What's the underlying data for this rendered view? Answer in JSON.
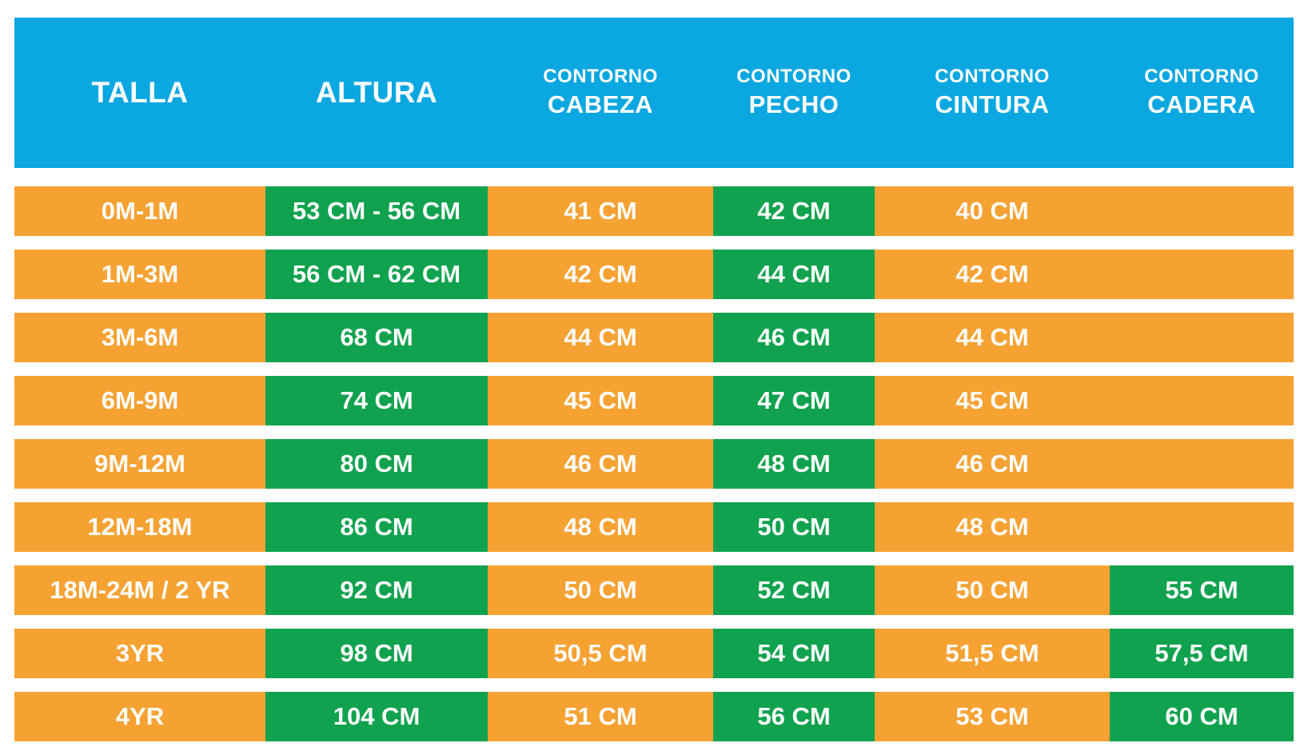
{
  "colors": {
    "header_blue": "#0AA7E1",
    "cell_orange": "#F5A233",
    "cell_green": "#10A24E",
    "text_white": "#FFFFFF",
    "page_background": "#FFFFFF"
  },
  "header": {
    "columns": [
      {
        "line1": "TALLA",
        "line2": ""
      },
      {
        "line1": "ALTURA",
        "line2": ""
      },
      {
        "line1": "CONTORNO",
        "line2": "CABEZA"
      },
      {
        "line1": "CONTORNO",
        "line2": "PECHO"
      },
      {
        "line1": "CONTORNO",
        "line2": "CINTURA"
      },
      {
        "line1": "CONTORNO",
        "line2": "CADERA"
      }
    ]
  },
  "chart_data": {
    "type": "table",
    "title": "",
    "columns": [
      "TALLA",
      "ALTURA",
      "CONTORNO CABEZA",
      "CONTORNO PECHO",
      "CONTORNO CINTURA",
      "CONTORNO CADERA"
    ],
    "unit": "CM",
    "rows": [
      [
        "0M-1M",
        "53 CM - 56 CM",
        "41 CM",
        "42 CM",
        "40 CM",
        ""
      ],
      [
        "1M-3M",
        "56 CM - 62 CM",
        "42 CM",
        "44 CM",
        "42 CM",
        ""
      ],
      [
        "3M-6M",
        "68 CM",
        "44 CM",
        "46 CM",
        "44 CM",
        ""
      ],
      [
        "6M-9M",
        "74 CM",
        "45 CM",
        "47 CM",
        "45 CM",
        ""
      ],
      [
        "9M-12M",
        "80 CM",
        "46 CM",
        "48 CM",
        "46 CM",
        ""
      ],
      [
        "12M-18M",
        "86 CM",
        "48 CM",
        "50 CM",
        "48 CM",
        ""
      ],
      [
        "18M-24M / 2 YR",
        "92 CM",
        "50 CM",
        "52 CM",
        "50 CM",
        "55 CM"
      ],
      [
        "3YR",
        "98 CM",
        "50,5 CM",
        "54 CM",
        "51,5 CM",
        "57,5 CM"
      ],
      [
        "4YR",
        "104 CM",
        "51 CM",
        "56 CM",
        "53 CM",
        "60 CM"
      ]
    ]
  }
}
